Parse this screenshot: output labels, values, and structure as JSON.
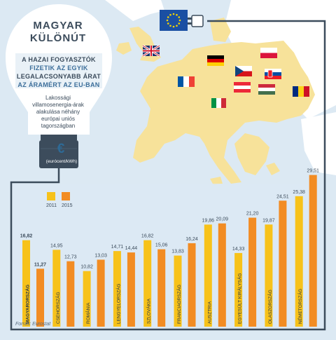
{
  "header": {
    "title_line1": "MAGYAR",
    "title_line2": "KÜLÖNÚT",
    "subtitle_line1": "A HAZAI FOGYASZTÓK",
    "subtitle_line2": "FIZETIK AZ EGYIK",
    "subtitle_line3": "LEGALACSONYABB ÁRAT",
    "subtitle_line4": "AZ ÁRAMÉRT AZ EU-BAN",
    "description_lines": [
      "Lakossági",
      "villamosenergia-árak",
      "alakulása néhány",
      "európai uniós",
      "tagországban"
    ],
    "unit": "(eurócent/kWh)",
    "currency_symbol": "€"
  },
  "source": "Forrás: Eurostat",
  "colors": {
    "series_2011": "#f7c21a",
    "series_2015": "#f28c23",
    "map_sea": "#dce9f3",
    "map_land_eu": "#f7e29a",
    "map_land_other": "#ffffff",
    "cable": "#3c4c5c",
    "bulb": "#ffffff",
    "bulb_base": "#3c4c5c",
    "eu_flag_blue": "#1a4fa3",
    "eu_flag_star": "#f7d600"
  },
  "icons": [
    "eu-flag-icon",
    "plug-icon",
    "light-bulb-icon",
    "euro-icon"
  ],
  "flags": [
    {
      "country": "Egyesült Királyság",
      "icon": "uk-flag-icon"
    },
    {
      "country": "Németország",
      "icon": "germany-flag-icon"
    },
    {
      "country": "Lengyelország",
      "icon": "poland-flag-icon"
    },
    {
      "country": "Franciaország",
      "icon": "france-flag-icon"
    },
    {
      "country": "Csehország",
      "icon": "czech-flag-icon"
    },
    {
      "country": "Szlovákia",
      "icon": "slovakia-flag-icon"
    },
    {
      "country": "Ausztria",
      "icon": "austria-flag-icon"
    },
    {
      "country": "Magyarország",
      "icon": "hungary-flag-icon"
    },
    {
      "country": "Románia",
      "icon": "romania-flag-icon"
    },
    {
      "country": "Olaszország",
      "icon": "italy-flag-icon"
    }
  ],
  "chart_data": {
    "type": "bar",
    "categories": [
      "MAGYARORSZÁG",
      "CSEHORSZÁG",
      "ROMÁNIA",
      "LENGYELORSZÁG",
      "SZLOVÁKIA",
      "FRANCIAORSZÁG",
      "AUSZTRIA",
      "EGYESÜLT KIRÁLYSÁG",
      "OLASZORSZÁG",
      "NÉMETORSZÁG"
    ],
    "series": [
      {
        "name": "2011",
        "values": [
          16.82,
          14.95,
          10.82,
          14.71,
          16.82,
          13.83,
          19.86,
          14.33,
          19.87,
          25.38
        ]
      },
      {
        "name": "2015",
        "values": [
          11.27,
          12.73,
          13.03,
          14.44,
          15.06,
          16.24,
          20.09,
          21.2,
          24.51,
          29.51
        ]
      }
    ],
    "value_labels": [
      [
        "16,82",
        "14,95",
        "10,82",
        "14,71",
        "16,82",
        "13,83",
        "19,86",
        "14,33",
        "19,87",
        "25,38"
      ],
      [
        "11,27",
        "12,73",
        "13,03",
        "14,44",
        "15,06",
        "16,24",
        "20,09",
        "21,20",
        "24,51",
        "29,51"
      ]
    ],
    "ylim": [
      0,
      30
    ],
    "grid": false,
    "legend": "top-left",
    "ylabel": "(eurócent/kWh)"
  }
}
